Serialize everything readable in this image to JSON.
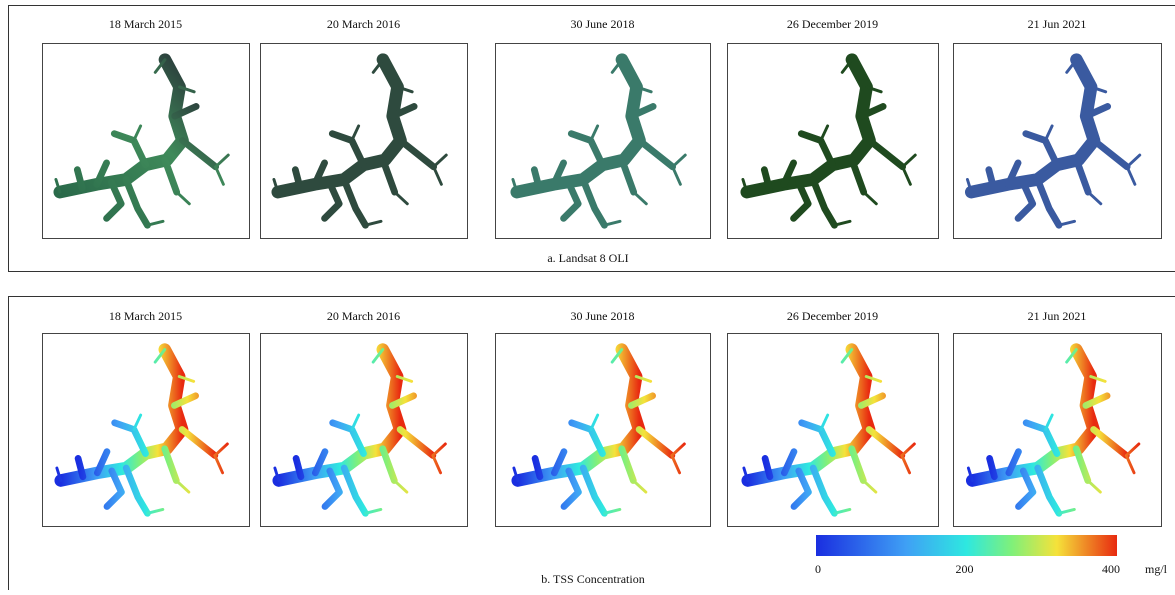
{
  "panels": [
    {
      "dates": [
        "18 March 2015",
        "20 March 2016",
        "30 June 2018",
        "26 December 2019",
        "21 Jun 2021"
      ],
      "caption": "a. Landsat 8 OLI"
    },
    {
      "dates": [
        "18 March 2015",
        "20 March 2016",
        "30 June 2018",
        "26 December 2019",
        "21 Jun 2021"
      ],
      "caption": "b. TSS Concentration"
    }
  ],
  "colorbar": {
    "range": [
      0,
      400
    ],
    "ticks": [
      0,
      200,
      400
    ],
    "unit": "mg/l"
  }
}
